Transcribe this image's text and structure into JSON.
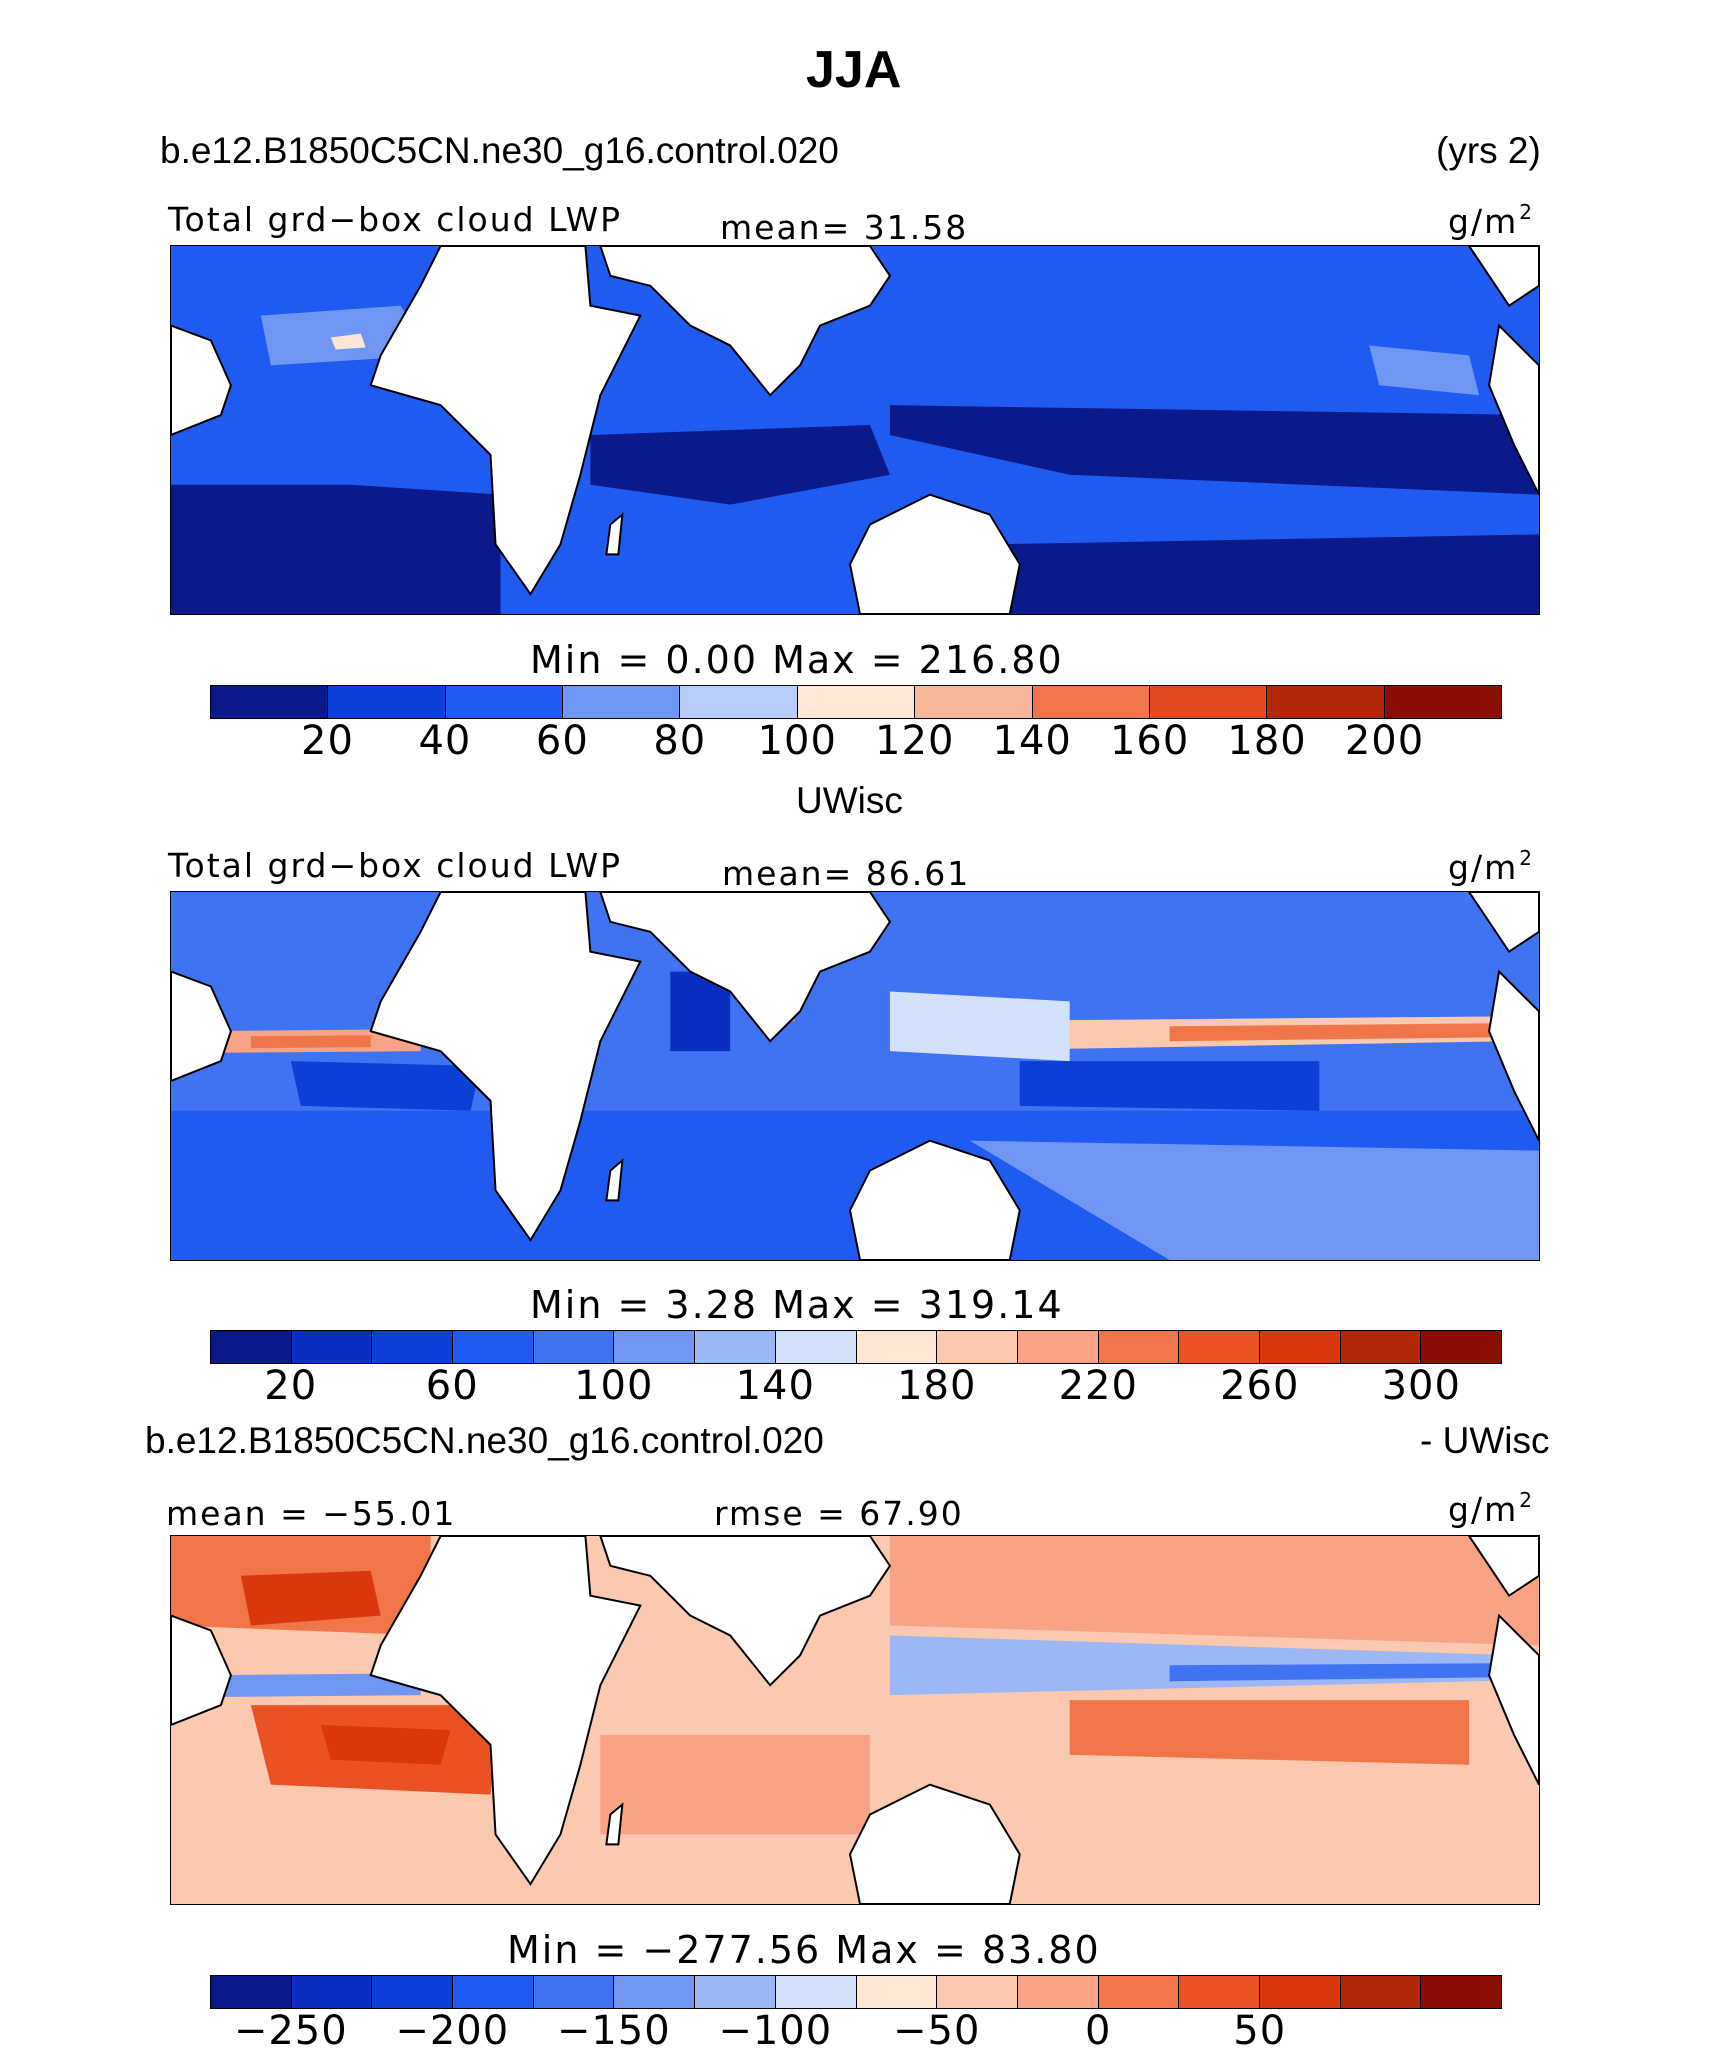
{
  "figure": {
    "season": "JJA",
    "case_name": "b.e12.B1850C5CN.ne30_g16.control.020",
    "years": "(yrs 2)",
    "diff_case_name": "b.e12.B1850C5CN.ne30_g16.control.020",
    "diff_suffix": "- UWisc",
    "obs_name": "UWisc"
  },
  "colors": {
    "panel1": [
      "#0a1a8a",
      "#0b3fd6",
      "#1f5bf0",
      "#6f96f2",
      "#b8cdf7",
      "#fde6d6",
      "#f8b69a",
      "#f07549",
      "#e24a1f",
      "#b22808",
      "#8b0d04"
    ],
    "panel2": [
      "#0a1a8a",
      "#0c2fc2",
      "#0b3fd6",
      "#1f5bf0",
      "#3f73f2",
      "#6f96f2",
      "#9bb7f5",
      "#d4e1fa",
      "#fde6d6",
      "#fac9b0",
      "#f8a386",
      "#f07549",
      "#ea5226",
      "#d9380e",
      "#b22808",
      "#8b0d04"
    ],
    "panel3": [
      "#0a1a8a",
      "#0c2fc2",
      "#0b3fd6",
      "#1f5bf0",
      "#3f73f2",
      "#6f96f2",
      "#9bb7f5",
      "#d4e1fa",
      "#fde6d6",
      "#fac9b0",
      "#f8a386",
      "#f07549",
      "#ea5226",
      "#d9380e",
      "#b22808",
      "#8b0d04"
    ]
  },
  "chart_data": [
    {
      "type": "heatmap",
      "variable_label": "Total grd−box cloud LWP",
      "units": "g/m",
      "units_exp": "2",
      "mean_text": "mean=   31.58",
      "minmax_text": "Min =    0.00 Max = 216.80",
      "stats": {
        "mean": 31.58,
        "min": 0.0,
        "max": 216.8
      },
      "colorbar_levels": [
        20,
        40,
        60,
        80,
        100,
        120,
        140,
        160,
        180,
        200
      ],
      "colorbar_ticks": [
        "20",
        "40",
        "60",
        "80",
        "100",
        "120",
        "140",
        "160",
        "180",
        "200"
      ]
    },
    {
      "type": "heatmap",
      "variable_label": "Total grd−box cloud LWP",
      "units": "g/m",
      "units_exp": "2",
      "mean_text": "mean=   86.61",
      "minmax_text": "Min =    3.28 Max = 319.14",
      "stats": {
        "mean": 86.61,
        "min": 3.28,
        "max": 319.14
      },
      "colorbar_levels": [
        20,
        40,
        60,
        80,
        100,
        120,
        140,
        160,
        180,
        200,
        220,
        240,
        260,
        280,
        300
      ],
      "colorbar_ticks": [
        "20",
        "60",
        "100",
        "140",
        "180",
        "220",
        "260",
        "300"
      ]
    },
    {
      "type": "heatmap",
      "variable_label": "",
      "units": "g/m",
      "units_exp": "2",
      "mean_text": "mean = −55.01",
      "rmse_text": "rmse =   67.90",
      "minmax_text": "Min = −277.56 Max =   83.80",
      "stats": {
        "mean": -55.01,
        "rmse": 67.9,
        "min": -277.56,
        "max": 83.8
      },
      "colorbar_levels": [
        -250,
        -225,
        -200,
        -175,
        -150,
        -125,
        -100,
        -75,
        -50,
        -25,
        0,
        25,
        50,
        75,
        100
      ],
      "colorbar_ticks": [
        "−250",
        "−200",
        "−150",
        "−100",
        "−50",
        "0",
        "50"
      ]
    }
  ]
}
